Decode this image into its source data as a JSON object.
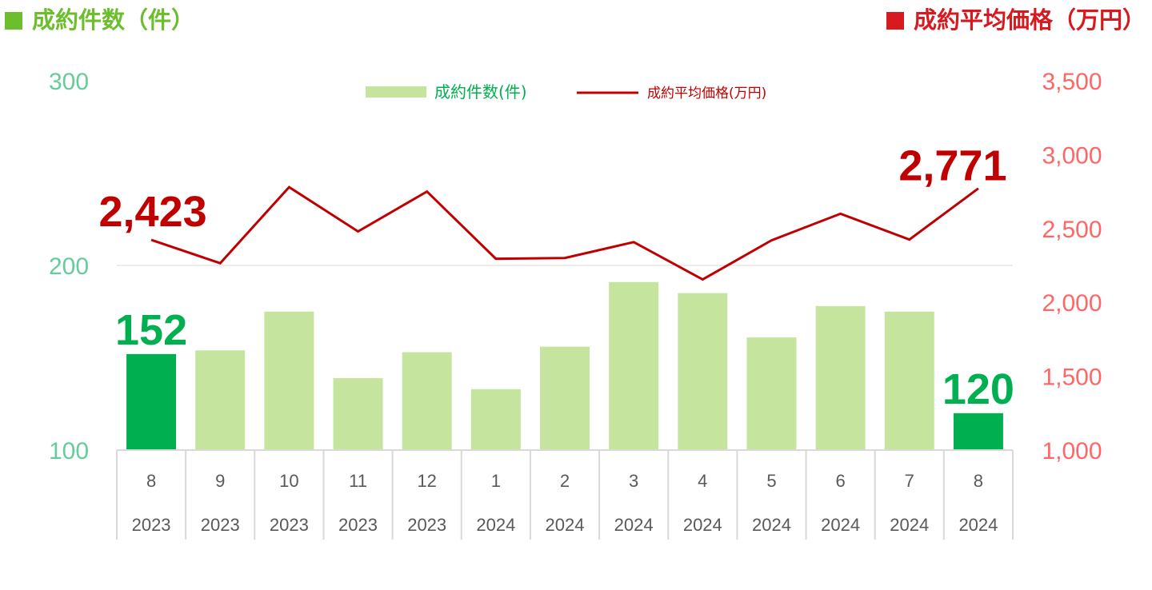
{
  "headers": {
    "left": {
      "label": "成約件数（件）",
      "color": "#6cbe2c"
    },
    "right": {
      "label": "成約平均価格（万円）",
      "color": "#d71920"
    }
  },
  "chart_data": {
    "type": "bar+line",
    "legend": {
      "position": "top-center",
      "bar_label": "成約件数(件)",
      "line_label": "成約平均価格(万円)"
    },
    "categories": [
      {
        "month": "8",
        "year": "2023"
      },
      {
        "month": "9",
        "year": "2023"
      },
      {
        "month": "10",
        "year": "2023"
      },
      {
        "month": "11",
        "year": "2023"
      },
      {
        "month": "12",
        "year": "2023"
      },
      {
        "month": "1",
        "year": "2024"
      },
      {
        "month": "2",
        "year": "2024"
      },
      {
        "month": "3",
        "year": "2024"
      },
      {
        "month": "4",
        "year": "2024"
      },
      {
        "month": "5",
        "year": "2024"
      },
      {
        "month": "6",
        "year": "2024"
      },
      {
        "month": "7",
        "year": "2024"
      },
      {
        "month": "8",
        "year": "2024"
      }
    ],
    "bars": {
      "name": "成約件数(件)",
      "values": [
        152,
        154,
        175,
        139,
        153,
        133,
        156,
        191,
        185,
        161,
        178,
        175,
        120
      ],
      "color": "#c5e59e",
      "highlight_color": "#00b050",
      "highlight_indices": [
        0,
        12
      ]
    },
    "line": {
      "name": "成約平均価格(万円)",
      "values": [
        2423,
        2265,
        2780,
        2480,
        2750,
        2295,
        2300,
        2408,
        2155,
        2420,
        2600,
        2425,
        2771
      ],
      "color": "#c00000"
    },
    "left_axis": {
      "min": 100,
      "max": 300,
      "ticks": [
        "100",
        "200",
        "300"
      ],
      "color": "#66cc99"
    },
    "right_axis": {
      "min": 1000,
      "max": 3500,
      "ticks": [
        "1,000",
        "1,500",
        "2,000",
        "2,500",
        "3,000",
        "3,500"
      ],
      "color": "#ff6666"
    },
    "annotations": [
      {
        "text": "152",
        "index": 0,
        "series": "bars",
        "color": "#00b050"
      },
      {
        "text": "120",
        "index": 12,
        "series": "bars",
        "color": "#00b050"
      },
      {
        "text": "2,423",
        "index": 0,
        "series": "line",
        "color": "#c00000"
      },
      {
        "text": "2,771",
        "index": 12,
        "series": "line",
        "color": "#c00000"
      }
    ],
    "grid": "single gridline at 200"
  }
}
